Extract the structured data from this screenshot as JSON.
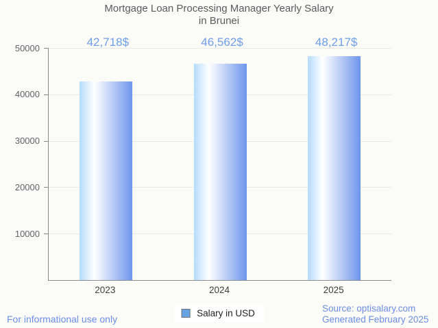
{
  "page": {
    "background_color": "#fbfbf7"
  },
  "header": {
    "title_line1": "Mortgage Loan Processing Manager Yearly Salary",
    "title_line2": "in Brunei"
  },
  "legend": {
    "label": "Salary in USD",
    "marker_color": "#68a2e3",
    "marker_border_color": "#757575"
  },
  "footer": {
    "disclaimer": "For informational use only",
    "source": "Source: optisalary.com",
    "generated": "Generated February 2025"
  },
  "chart_data": {
    "type": "bar",
    "title": "Mortgage Loan Processing Manager Yearly Salary in Brunei",
    "categories": [
      "2023",
      "2024",
      "2025"
    ],
    "values": [
      42718,
      46562,
      48217
    ],
    "value_labels": [
      "42,718$",
      "46,562$",
      "48,217$"
    ],
    "series_name": "Salary in USD",
    "xlabel": "",
    "ylabel": "",
    "ylim": [
      0,
      50000
    ],
    "yticks": [
      10000,
      20000,
      30000,
      40000,
      50000
    ],
    "grid": true,
    "legend_position": "bottom-center",
    "value_label_color": "#6d9eeb",
    "bar_gradient": [
      "#b5dbfd",
      "#ffffff",
      "#6e95ec"
    ],
    "gridline_color": "#e8e8e4",
    "axis_color": "#8a8a8a"
  }
}
